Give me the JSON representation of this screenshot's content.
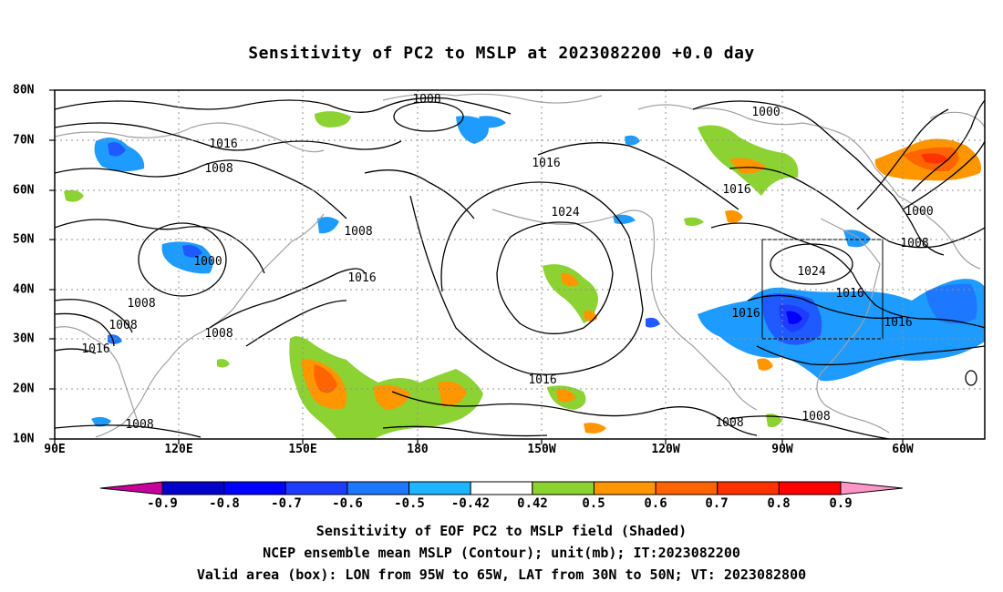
{
  "title": "Sensitivity of PC2 to MSLP at 2023082200 +0.0 day",
  "lon_labels": [
    "90E",
    "120E",
    "150E",
    "180",
    "150W",
    "120W",
    "90W",
    "60W"
  ],
  "lat_labels": [
    "80N",
    "70N",
    "60N",
    "50N",
    "40N",
    "30N",
    "20N",
    "10N"
  ],
  "colorbar": {
    "ticks": [
      "-0.9",
      "-0.8",
      "-0.7",
      "-0.6",
      "-0.5",
      "-0.42",
      "0.42",
      "0.5",
      "0.6",
      "0.7",
      "0.8",
      "0.9"
    ],
    "colors": [
      "#0000c8",
      "#0000ff",
      "#1e3cff",
      "#1e78ff",
      "#1eb4ff",
      "#ffffff",
      "#8cd232",
      "#ff9600",
      "#ff6400",
      "#ff3200",
      "#ff0000"
    ],
    "under_color": "#c8009b",
    "over_color": "#ff96c8"
  },
  "contour_labels": [
    "1008",
    "1016",
    "1008",
    "1000",
    "1008",
    "1008",
    "1016",
    "1008",
    "1016",
    "1008",
    "1016",
    "1024",
    "1016",
    "1000",
    "1016",
    "1000",
    "1008",
    "1024",
    "1016",
    "1016",
    "1016",
    "1008",
    "1008",
    "1008"
  ],
  "box": {
    "lon_from": "95W",
    "lon_to": "65W",
    "lat_from": "30N",
    "lat_to": "50N"
  },
  "footer": {
    "line1": "Sensitivity of EOF PC2 to MSLP field (Shaded)",
    "line2": "NCEP ensemble mean MSLP (Contour); unit(mb); IT:2023082200",
    "line3": "Valid area (box): LON from 95W to 65W, LAT from 30N to 50N; VT: 2023082800"
  }
}
